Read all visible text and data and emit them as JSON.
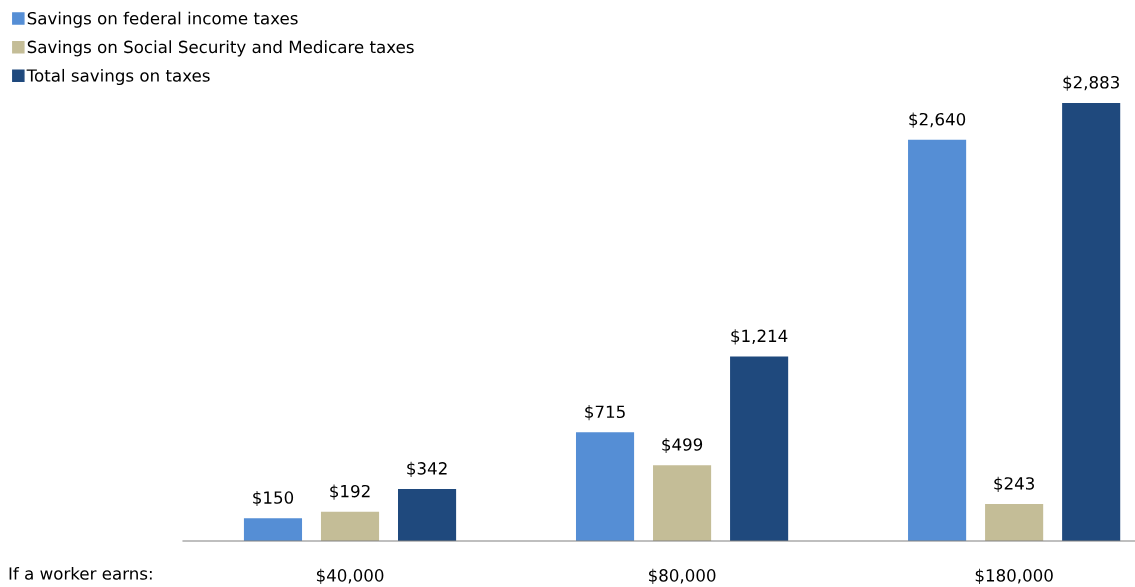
{
  "chart_data": {
    "type": "bar",
    "categories": [
      "$40,000",
      "$80,000",
      "$180,000"
    ],
    "series": [
      {
        "name": "Savings on federal income taxes",
        "color": "#558ed5",
        "values": [
          150,
          715,
          2640
        ],
        "value_labels": [
          "$150",
          "$715",
          "$2,640"
        ]
      },
      {
        "name": "Savings on Social Security and Medicare taxes",
        "color": "#c4bd97",
        "values": [
          192,
          499,
          243
        ],
        "value_labels": [
          "$192",
          "$499",
          "$243"
        ]
      },
      {
        "name": "Total savings on taxes",
        "color": "#1f497d",
        "values": [
          342,
          1214,
          2883
        ],
        "value_labels": [
          "$342",
          "$1,214",
          "$2,883"
        ]
      }
    ],
    "legend": "top left",
    "grid": false,
    "annotations": [
      "If a worker earns:"
    ]
  }
}
